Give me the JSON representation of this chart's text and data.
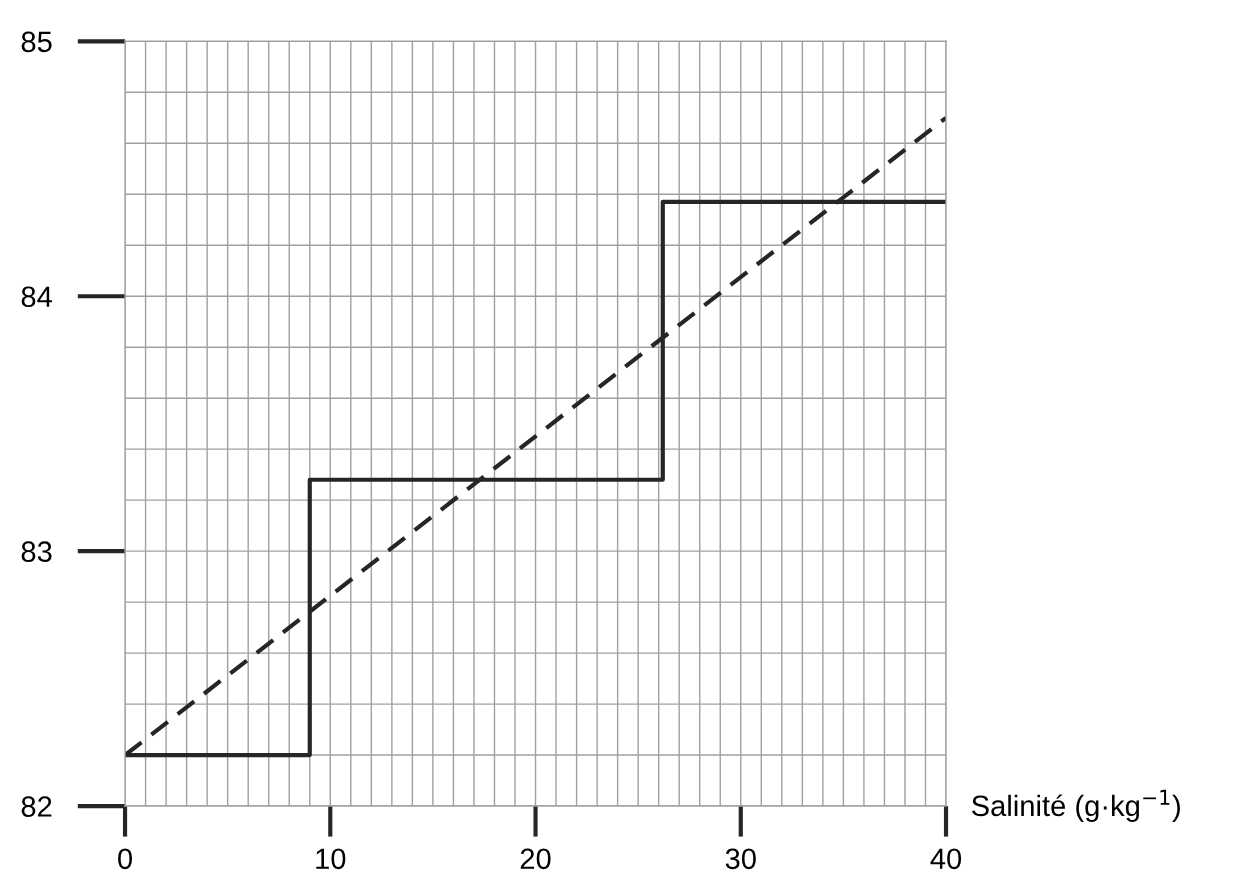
{
  "chart_data": {
    "type": "line",
    "xlabel": "Salinité (g·kg$^{−1}$)",
    "series": [
      {
        "type": "step",
        "color": "#262626",
        "x": [
          0,
          9,
          26.2,
          40
        ],
        "values": [
          82.2,
          83.28,
          84.37,
          84.37
        ],
        "line_style": "solid"
      },
      {
        "color": "#262626",
        "x": [
          0,
          40
        ],
        "values": [
          82.2,
          84.7
        ],
        "line_style": "dashed"
      }
    ],
    "xlim": [
      0,
      40
    ],
    "ylim": [
      82,
      85
    ],
    "xticks": [
      0,
      {
        "value": 1,
        "label": null
      },
      {
        "value": 2,
        "label": null
      },
      {
        "value": 3,
        "label": null
      },
      {
        "value": 4,
        "label": null
      },
      {
        "value": 5,
        "label": null
      },
      {
        "value": 6,
        "label": null
      },
      {
        "value": 7,
        "label": null
      },
      {
        "value": 8,
        "label": null
      },
      {
        "value": 9,
        "label": null
      },
      10,
      {
        "value": 11,
        "label": null
      },
      {
        "value": 12,
        "label": null
      },
      {
        "value": 13,
        "label": null
      },
      {
        "value": 14,
        "label": null
      },
      {
        "value": 15,
        "label": null
      },
      {
        "value": 16,
        "label": null
      },
      {
        "value": 17,
        "label": null
      },
      {
        "value": 18,
        "label": null
      },
      {
        "value": 19,
        "label": null
      },
      20,
      {
        "value": 21,
        "label": null
      },
      {
        "value": 22,
        "label": null
      },
      {
        "value": 23,
        "label": null
      },
      {
        "value": 24,
        "label": null
      },
      {
        "value": 25,
        "label": null
      },
      {
        "value": 26,
        "label": null
      },
      {
        "value": 27,
        "label": null
      },
      {
        "value": 28,
        "label": null
      },
      {
        "value": 29,
        "label": null
      },
      30,
      {
        "value": 31,
        "label": null
      },
      {
        "value": 32,
        "label": null
      },
      {
        "value": 33,
        "label": null
      },
      {
        "value": 34,
        "label": null
      },
      {
        "value": 35,
        "label": null
      },
      {
        "value": 36,
        "label": null
      },
      {
        "value": 37,
        "label": null
      },
      {
        "value": 38,
        "label": null
      },
      {
        "value": 39,
        "label": null
      },
      40
    ],
    "yticks": [
      82,
      {
        "value": 82.2,
        "label": null
      },
      {
        "value": 82.4,
        "label": null
      },
      {
        "value": 82.6,
        "label": null
      },
      {
        "value": 82.8,
        "label": null
      },
      83,
      {
        "value": 83.2,
        "label": null
      },
      {
        "value": 83.4,
        "label": null
      },
      {
        "value": 83.6,
        "label": null
      },
      {
        "value": 83.8,
        "label": null
      },
      84,
      {
        "value": 84.2,
        "label": null
      },
      {
        "value": 84.4,
        "label": null
      },
      {
        "value": 84.6,
        "label": null
      },
      {
        "value": 84.8,
        "label": null
      },
      85
    ],
    "grid": true,
    "legend": false,
    "marker": "none"
  }
}
